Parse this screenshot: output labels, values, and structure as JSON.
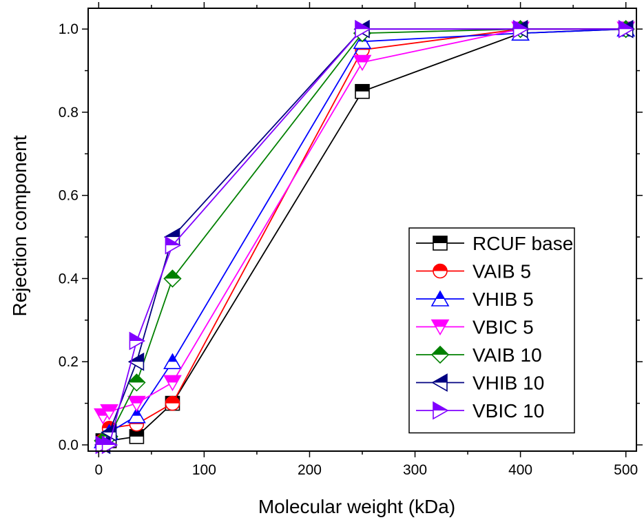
{
  "chart_data": {
    "type": "line",
    "xlabel": "Molecular weight (kDa)",
    "ylabel": "Rejection component",
    "xlim": [
      -10,
      510
    ],
    "ylim": [
      -0.015,
      1.05
    ],
    "xticks": [
      0,
      100,
      200,
      300,
      400,
      500
    ],
    "yticks": [
      0.0,
      0.2,
      0.4,
      0.6,
      0.8,
      1.0
    ],
    "ytick_labels": [
      "0.0",
      "0.2",
      "0.4",
      "0.6",
      "0.8",
      "1.0"
    ],
    "grid": false,
    "legend_position": "bottom-right",
    "x": [
      4,
      10,
      36,
      70,
      250,
      400,
      500
    ],
    "series": [
      {
        "name": "RCUF base",
        "color": "#000000",
        "marker": "square",
        "values": [
          0.01,
          0.01,
          0.02,
          0.1,
          0.85,
          0.99,
          1.0
        ]
      },
      {
        "name": "VAIB 5",
        "color": "#ff0000",
        "marker": "circle",
        "values": [
          0.01,
          0.04,
          0.05,
          0.1,
          0.95,
          1.0,
          1.0
        ]
      },
      {
        "name": "VHIB 5",
        "color": "#0000ff",
        "marker": "triangle-up",
        "values": [
          0.01,
          0.03,
          0.07,
          0.2,
          0.97,
          0.99,
          1.0
        ]
      },
      {
        "name": "VBIC 5",
        "color": "#ff00ff",
        "marker": "triangle-down",
        "values": [
          0.07,
          0.08,
          0.1,
          0.15,
          0.92,
          1.0,
          1.0
        ]
      },
      {
        "name": "VAIB 10",
        "color": "#008000",
        "marker": "diamond",
        "values": [
          0.01,
          0.02,
          0.15,
          0.4,
          0.99,
          1.0,
          1.0
        ]
      },
      {
        "name": "VHIB 10",
        "color": "#000080",
        "marker": "triangle-left",
        "values": [
          0.0,
          0.03,
          0.2,
          0.5,
          1.0,
          1.0,
          1.0
        ]
      },
      {
        "name": "VBIC 10",
        "color": "#8000ff",
        "marker": "triangle-right",
        "values": [
          0.0,
          0.0,
          0.25,
          0.48,
          1.0,
          1.0,
          1.0
        ]
      }
    ]
  }
}
